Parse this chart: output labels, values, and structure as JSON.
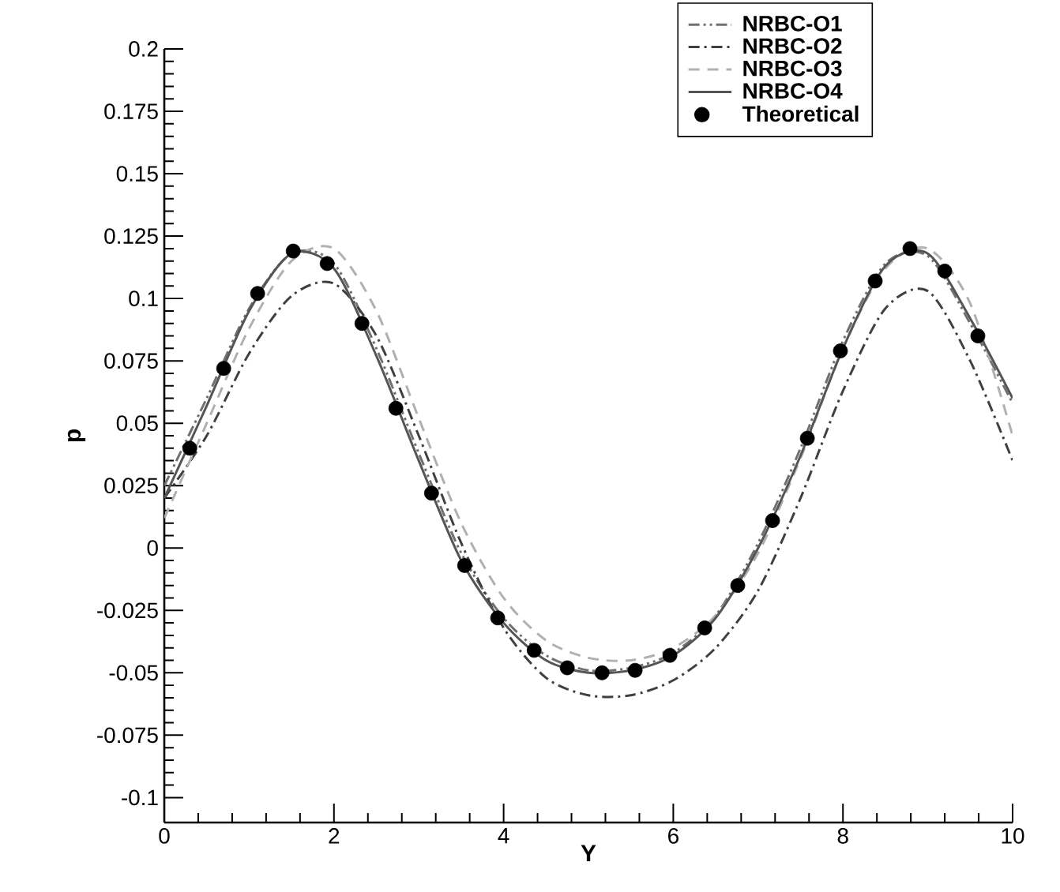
{
  "chart_data": {
    "type": "line",
    "xlabel": "Y",
    "ylabel": "p",
    "xlim": [
      0,
      10
    ],
    "xticks": [
      0,
      2,
      4,
      6,
      8,
      10
    ],
    "ylim": [
      -0.11,
      0.2
    ],
    "yticks": [
      -0.1,
      -0.075,
      -0.05,
      -0.025,
      0,
      0.025,
      0.05,
      0.075,
      0.1,
      0.125,
      0.15,
      0.175,
      0.2
    ],
    "grid": false,
    "legend": "top right",
    "x": [
      0,
      0.5,
      1,
      1.5,
      2,
      2.5,
      3,
      3.5,
      4,
      4.5,
      5,
      5.5,
      6,
      6.5,
      7,
      7.5,
      8,
      8.5,
      9,
      9.5,
      10
    ],
    "series": [
      {
        "name": "NRBC-O1",
        "color": "#707070",
        "line_style": "dashdotdot",
        "values": [
          0.025,
          0.06,
          0.096,
          0.118,
          0.114,
          0.08,
          0.038,
          -0.002,
          -0.028,
          -0.043,
          -0.049,
          -0.048,
          -0.042,
          -0.027,
          0.002,
          0.04,
          0.083,
          0.114,
          0.117,
          0.09,
          0.058
        ]
      },
      {
        "name": "NRBC-O2",
        "color": "#404040",
        "line_style": "dashdot",
        "values": [
          0.02,
          0.045,
          0.078,
          0.101,
          0.106,
          0.085,
          0.045,
          0.002,
          -0.032,
          -0.052,
          -0.059,
          -0.059,
          -0.053,
          -0.04,
          -0.017,
          0.02,
          0.063,
          0.096,
          0.103,
          0.075,
          0.035
        ]
      },
      {
        "name": "NRBC-O3",
        "color": "#b0b0b0",
        "line_style": "dashed",
        "values": [
          0.012,
          0.05,
          0.088,
          0.115,
          0.12,
          0.095,
          0.052,
          0.01,
          -0.02,
          -0.037,
          -0.044,
          -0.045,
          -0.04,
          -0.027,
          -0.002,
          0.036,
          0.08,
          0.112,
          0.12,
          0.098,
          0.045
        ]
      },
      {
        "name": "NRBC-O4",
        "color": "#555555",
        "line_style": "solid",
        "values": [
          0.02,
          0.057,
          0.095,
          0.118,
          0.112,
          0.077,
          0.035,
          -0.005,
          -0.03,
          -0.045,
          -0.05,
          -0.049,
          -0.043,
          -0.028,
          0.0,
          0.037,
          0.08,
          0.113,
          0.118,
          0.092,
          0.06
        ]
      },
      {
        "name": "Theoretical",
        "type": "scatter",
        "marker": "circle",
        "color": "#000000",
        "x": [
          0.3,
          0.7,
          1.1,
          1.52,
          1.92,
          2.33,
          2.73,
          3.15,
          3.54,
          3.93,
          4.36,
          4.75,
          5.16,
          5.55,
          5.96,
          6.37,
          6.76,
          7.17,
          7.58,
          7.97,
          8.38,
          8.79,
          9.2,
          9.59
        ],
        "values": [
          0.04,
          0.072,
          0.102,
          0.119,
          0.114,
          0.09,
          0.056,
          0.022,
          -0.007,
          -0.028,
          -0.041,
          -0.048,
          -0.05,
          -0.049,
          -0.043,
          -0.032,
          -0.015,
          0.011,
          0.044,
          0.079,
          0.107,
          0.12,
          0.111,
          0.085
        ]
      }
    ]
  }
}
